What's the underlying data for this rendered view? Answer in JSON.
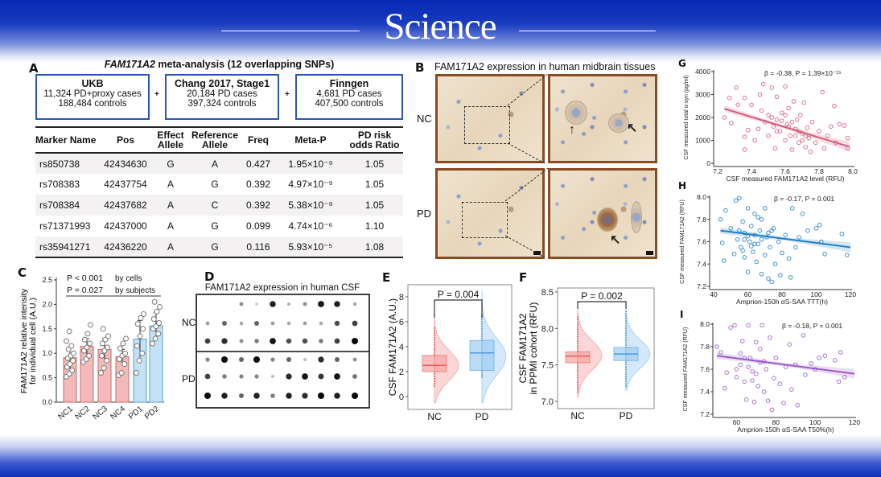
{
  "header": {
    "journal": "Science"
  },
  "panelA": {
    "label": "A",
    "title_gene": "FAM171A2",
    "title_rest": " meta-analysis (12 overlapping SNPs)",
    "cohorts": [
      {
        "name": "UKB",
        "line1": "11,324 PD+proxy cases",
        "line2": "188,484 controls"
      },
      {
        "name": "Chang 2017, Stage1",
        "line1": "20,184 PD cases",
        "line2": "397,324 controls"
      },
      {
        "name": "Finngen",
        "line1": "4,681 PD cases",
        "line2": "407,500 controls"
      }
    ],
    "plus": "+",
    "columns": [
      "Marker Name",
      "Pos",
      "Effect Allele",
      "Reference Allele",
      "Freq",
      "Meta-P",
      "PD risk odds Ratio"
    ],
    "rows": [
      [
        "rs850738",
        "42434630",
        "G",
        "A",
        "0.427",
        "1.95×10⁻⁹",
        "1.05"
      ],
      [
        "rs708383",
        "42437754",
        "A",
        "G",
        "0.392",
        "4.97×10⁻⁹",
        "1.05"
      ],
      [
        "rs708384",
        "42437682",
        "A",
        "C",
        "0.392",
        "5.38×10⁻⁹",
        "1.05"
      ],
      [
        "rs71371993",
        "42437000",
        "A",
        "G",
        "0.099",
        "4.74×10⁻⁶",
        "1.10"
      ],
      [
        "rs35941271",
        "42436220",
        "A",
        "G",
        "0.116",
        "5.93×10⁻⁵",
        "1.08"
      ]
    ]
  },
  "panelB": {
    "label": "B",
    "title": "FAM171A2 expression in human midbrain tissues",
    "rows": [
      "NC",
      "PD"
    ]
  },
  "panelLabels": {
    "C": "C",
    "D": "D",
    "E": "E",
    "F": "F",
    "G": "G",
    "H": "H",
    "I": "I"
  },
  "colors": {
    "nc": "#f4b9b9",
    "pd": "#c4e2f7",
    "g": "#d65a7c",
    "h": "#1f7fc4",
    "i": "#9a5cc8"
  },
  "chart_data": [
    {
      "type": "bar",
      "panel": "C",
      "categories": [
        "NC1",
        "NC2",
        "NC3",
        "NC4",
        "PD1",
        "PD2"
      ],
      "groups": [
        "NC",
        "NC",
        "NC",
        "NC",
        "PD",
        "PD"
      ],
      "values": [
        0.91,
        1.14,
        1.08,
        0.93,
        1.29,
        1.56
      ],
      "errors": [
        0.22,
        0.16,
        0.22,
        0.15,
        0.38,
        0.28
      ],
      "points": [
        [
          0.52,
          0.58,
          0.65,
          0.72,
          0.78,
          0.85,
          0.9,
          0.95,
          1.0,
          1.08,
          1.15,
          1.25,
          1.45
        ],
        [
          0.82,
          0.88,
          0.95,
          1.05,
          1.12,
          1.2,
          1.28,
          1.4,
          1.58
        ],
        [
          0.6,
          0.7,
          0.85,
          0.95,
          1.05,
          1.12,
          1.2,
          1.28,
          1.35,
          1.5
        ],
        [
          0.55,
          0.6,
          0.78,
          0.88,
          0.95,
          1.0,
          1.1,
          1.2,
          1.3
        ],
        [
          0.6,
          0.85,
          1.0,
          1.15,
          1.35,
          1.5,
          1.6,
          1.72,
          1.8
        ],
        [
          1.2,
          1.3,
          1.4,
          1.5,
          1.55,
          1.62,
          1.7,
          1.85,
          1.95,
          2.05
        ]
      ],
      "ylabel": [
        "FAM171A2 relative intensity",
        "for individual cell (A.U.)"
      ],
      "yticks": [
        "0.0",
        "0.5",
        "1.0",
        "1.5",
        "2.0",
        "2.5"
      ],
      "ylim": [
        0,
        2.5
      ],
      "annotations": [
        {
          "p": "P < 0.001",
          "by": "by cells"
        },
        {
          "p": "P = 0.027",
          "by": "by subjects"
        }
      ]
    },
    {
      "type": "heatmap",
      "panel": "D",
      "title": "FAM171A2 expression in human CSF",
      "groups": [
        "NC",
        "PD"
      ],
      "intensity": {
        "NC": [
          [
            0,
            0,
            0.4,
            0.15,
            0.9,
            0.25,
            0.4,
            0.95,
            0.9,
            0.3
          ],
          [
            0.35,
            0.6,
            0.3,
            0.6,
            0.35,
            0.3,
            0.35,
            0.3,
            0.7,
            0.75
          ],
          [
            0.75,
            0.85,
            0.4,
            0.5,
            0.95,
            0.7,
            0.7,
            0.5,
            0.75,
            1.0
          ]
        ],
        "PD": [
          [
            0.45,
            1.0,
            0.6,
            1.0,
            0.45,
            0.6,
            0.2,
            0.85,
            0.6,
            0.4
          ],
          [
            0.75,
            0.5,
            0.45,
            0.45,
            0.2,
            0.85,
            0.95,
            0.8,
            0.95,
            0.55
          ],
          [
            1.0,
            0.9,
            0.6,
            0.9,
            0.5,
            0.9,
            0.85,
            1.0,
            0.9,
            1.0
          ]
        ]
      }
    },
    {
      "type": "box-violin",
      "panel": "E",
      "ylabel": "CSF FAM171A2 (A.U.)",
      "ylim": [
        -1,
        8.5
      ],
      "yticks": [
        0,
        2,
        4,
        6,
        8
      ],
      "categories": [
        "NC",
        "PD"
      ],
      "p_label": "P = 0.004",
      "box": [
        {
          "q1": 2.0,
          "median": 2.5,
          "q3": 3.3,
          "wmin": 0.8,
          "wmax": 5.6
        },
        {
          "q1": 2.1,
          "median": 3.5,
          "q3": 4.5,
          "wmin": 1.5,
          "wmax": 6.6
        }
      ],
      "violin": [
        {
          "min": -0.5,
          "max": 6.8,
          "mode": 2.5
        },
        {
          "min": -0.5,
          "max": 8.5,
          "mode": 3.2
        }
      ]
    },
    {
      "type": "box-violin",
      "panel": "F",
      "ylabel": [
        "CSF FAM171A2",
        "in PPMI cohort (RFU)"
      ],
      "ylim": [
        6.95,
        8.55
      ],
      "yticks": [
        "7.0",
        "7.5",
        "8.0",
        "8.5"
      ],
      "categories": [
        "NC",
        "PD"
      ],
      "p_label": "P = 0.002",
      "box": [
        {
          "q1": 7.53,
          "median": 7.62,
          "q3": 7.68,
          "wmin": 7.12,
          "wmax": 8.18
        },
        {
          "q1": 7.56,
          "median": 7.65,
          "q3": 7.74,
          "wmin": 7.2,
          "wmax": 8.25
        }
      ],
      "violin": [
        {
          "min": 7.05,
          "max": 8.25,
          "mode": 7.63
        },
        {
          "min": 7.15,
          "max": 8.3,
          "mode": 7.65
        }
      ]
    },
    {
      "type": "scatter",
      "panel": "G",
      "xlabel": "CSF measured FAM171A2 level (RFU)",
      "ylabel": "CSF measured total α-syn (pg/ml)",
      "annotation": "β = -0.38, P = 1.39×10⁻¹⁵",
      "xlim": [
        7.2,
        8.0
      ],
      "ylim": [
        0,
        4000
      ],
      "xticks": [
        "7.2",
        "7.4",
        "7.6",
        "7.8",
        "8.0"
      ],
      "yticks": [
        "0",
        "1000",
        "2000",
        "3000",
        "4000"
      ],
      "fit": [
        [
          7.24,
          2380
        ],
        [
          7.98,
          720
        ]
      ],
      "points": [
        [
          7.24,
          2000
        ],
        [
          7.27,
          2850
        ],
        [
          7.28,
          1750
        ],
        [
          7.31,
          3300
        ],
        [
          7.32,
          2550
        ],
        [
          7.36,
          2850
        ],
        [
          7.36,
          1150
        ],
        [
          7.36,
          600
        ],
        [
          7.38,
          1450
        ],
        [
          7.4,
          2550
        ],
        [
          7.42,
          1000
        ],
        [
          7.44,
          1500
        ],
        [
          7.45,
          3000
        ],
        [
          7.46,
          2300
        ],
        [
          7.47,
          3450
        ],
        [
          7.48,
          1800
        ],
        [
          7.5,
          1200
        ],
        [
          7.5,
          2100
        ],
        [
          7.52,
          3300
        ],
        [
          7.53,
          1600
        ],
        [
          7.54,
          650
        ],
        [
          7.55,
          2900
        ],
        [
          7.55,
          1900
        ],
        [
          7.57,
          1400
        ],
        [
          7.58,
          2200
        ],
        [
          7.6,
          1000
        ],
        [
          7.6,
          3350
        ],
        [
          7.61,
          1700
        ],
        [
          7.62,
          2400
        ],
        [
          7.63,
          1200
        ],
        [
          7.64,
          600
        ],
        [
          7.65,
          2700
        ],
        [
          7.66,
          1500
        ],
        [
          7.67,
          1900
        ],
        [
          7.68,
          900
        ],
        [
          7.69,
          2100
        ],
        [
          7.7,
          1300
        ],
        [
          7.71,
          2650
        ],
        [
          7.72,
          700
        ],
        [
          7.73,
          1550
        ],
        [
          7.74,
          1100
        ],
        [
          7.75,
          500
        ],
        [
          7.76,
          1800
        ],
        [
          7.78,
          900
        ],
        [
          7.8,
          1400
        ],
        [
          7.82,
          3100
        ],
        [
          7.83,
          650
        ],
        [
          7.85,
          1200
        ],
        [
          7.87,
          1600
        ],
        [
          7.89,
          2500
        ],
        [
          7.9,
          900
        ],
        [
          7.92,
          1700
        ],
        [
          7.95,
          1650
        ],
        [
          7.97,
          1100
        ],
        [
          7.97,
          650
        ],
        [
          7.58,
          1850
        ],
        [
          7.62,
          1600
        ],
        [
          7.66,
          1200
        ],
        [
          7.7,
          1000
        ],
        [
          7.55,
          1400
        ],
        [
          7.52,
          2000
        ],
        [
          7.64,
          1800
        ],
        [
          7.68,
          1400
        ],
        [
          7.72,
          1200
        ],
        [
          7.6,
          2100
        ]
      ]
    },
    {
      "type": "scatter",
      "panel": "H",
      "xlabel": "Amprion-150h αS-SAA TTT(h)",
      "ylabel": "CSF measured FAM171A2 (RFU)",
      "annotation": "β = -0.17, P = 0.001",
      "xlim": [
        40,
        120
      ],
      "ylim": [
        7.2,
        8.0
      ],
      "xticks": [
        "40",
        "60",
        "80",
        "100",
        "120"
      ],
      "yticks": [
        "7.2",
        "7.4",
        "7.6",
        "7.8",
        "8.0"
      ],
      "fit": [
        [
          44,
          7.7
        ],
        [
          120,
          7.55
        ]
      ],
      "points": [
        [
          44,
          7.8
        ],
        [
          45,
          7.59
        ],
        [
          46,
          7.43
        ],
        [
          47,
          7.88
        ],
        [
          50,
          7.72
        ],
        [
          52,
          7.49
        ],
        [
          53,
          7.97
        ],
        [
          54,
          7.62
        ],
        [
          55,
          7.99
        ],
        [
          56,
          7.55
        ],
        [
          57,
          7.78
        ],
        [
          58,
          7.46
        ],
        [
          58,
          7.68
        ],
        [
          60,
          7.9
        ],
        [
          60,
          7.33
        ],
        [
          61,
          7.6
        ],
        [
          62,
          7.74
        ],
        [
          63,
          7.51
        ],
        [
          64,
          7.85
        ],
        [
          64,
          7.66
        ],
        [
          65,
          7.42
        ],
        [
          66,
          7.58
        ],
        [
          67,
          7.7
        ],
        [
          68,
          7.31
        ],
        [
          68,
          7.8
        ],
        [
          70,
          7.48
        ],
        [
          70,
          7.9
        ],
        [
          71,
          7.64
        ],
        [
          72,
          7.27
        ],
        [
          73,
          7.55
        ],
        [
          74,
          7.24
        ],
        [
          75,
          7.72
        ],
        [
          76,
          7.4
        ],
        [
          78,
          7.6
        ],
        [
          79,
          7.3
        ],
        [
          80,
          7.5
        ],
        [
          82,
          7.66
        ],
        [
          84,
          7.45
        ],
        [
          85,
          7.28
        ],
        [
          86,
          7.9
        ],
        [
          88,
          7.55
        ],
        [
          90,
          7.64
        ],
        [
          92,
          7.85
        ],
        [
          95,
          7.7
        ],
        [
          100,
          7.72
        ],
        [
          102,
          7.75
        ],
        [
          103,
          7.6
        ],
        [
          105,
          7.49
        ],
        [
          115,
          7.67
        ],
        [
          118,
          7.48
        ],
        [
          62,
          7.56
        ],
        [
          66,
          7.82
        ],
        [
          58,
          7.62
        ],
        [
          72,
          7.68
        ],
        [
          55,
          7.7
        ],
        [
          60,
          7.65
        ],
        [
          64,
          7.58
        ],
        [
          68,
          7.62
        ],
        [
          57,
          7.52
        ],
        [
          74,
          7.7
        ]
      ]
    },
    {
      "type": "scatter",
      "panel": "I",
      "xlabel": "Amprion-150h αS-SAA T50%(h)",
      "ylabel": "CSF measured FAM171A2 (RFU)",
      "annotation": "β = -0.18, P = 0.001",
      "xlim": [
        50,
        120
      ],
      "ylim": [
        7.2,
        8.0
      ],
      "xticks": [
        "60",
        "80",
        "100",
        "120"
      ],
      "xtick_values": [
        60,
        80,
        100,
        120
      ],
      "yticks": [
        "7.2",
        "7.4",
        "7.6",
        "7.8",
        "8.0"
      ],
      "fit": [
        [
          50,
          7.72
        ],
        [
          120,
          7.56
        ]
      ],
      "points": [
        [
          50,
          7.8
        ],
        [
          52,
          7.75
        ],
        [
          54,
          7.43
        ],
        [
          55,
          7.57
        ],
        [
          57,
          7.97
        ],
        [
          59,
          7.99
        ],
        [
          60,
          7.53
        ],
        [
          62,
          7.64
        ],
        [
          63,
          7.85
        ],
        [
          64,
          7.49
        ],
        [
          65,
          7.33
        ],
        [
          66,
          7.99
        ],
        [
          67,
          7.7
        ],
        [
          68,
          7.58
        ],
        [
          69,
          7.31
        ],
        [
          70,
          7.84
        ],
        [
          71,
          7.45
        ],
        [
          72,
          7.66
        ],
        [
          73,
          7.99
        ],
        [
          74,
          7.4
        ],
        [
          75,
          7.6
        ],
        [
          76,
          7.32
        ],
        [
          77,
          7.88
        ],
        [
          78,
          7.24
        ],
        [
          79,
          7.52
        ],
        [
          80,
          7.7
        ],
        [
          82,
          7.47
        ],
        [
          84,
          7.3
        ],
        [
          85,
          7.62
        ],
        [
          87,
          7.82
        ],
        [
          88,
          7.42
        ],
        [
          90,
          7.64
        ],
        [
          91,
          7.28
        ],
        [
          94,
          7.9
        ],
        [
          95,
          7.55
        ],
        [
          98,
          7.65
        ],
        [
          100,
          7.6
        ],
        [
          102,
          7.7
        ],
        [
          105,
          7.72
        ],
        [
          110,
          7.68
        ],
        [
          112,
          7.49
        ],
        [
          113,
          7.75
        ],
        [
          115,
          7.53
        ],
        [
          66,
          7.62
        ],
        [
          70,
          7.56
        ],
        [
          62,
          7.74
        ],
        [
          74,
          7.67
        ],
        [
          64,
          7.7
        ],
        [
          68,
          7.5
        ],
        [
          72,
          7.78
        ],
        [
          60,
          7.6
        ]
      ]
    }
  ]
}
